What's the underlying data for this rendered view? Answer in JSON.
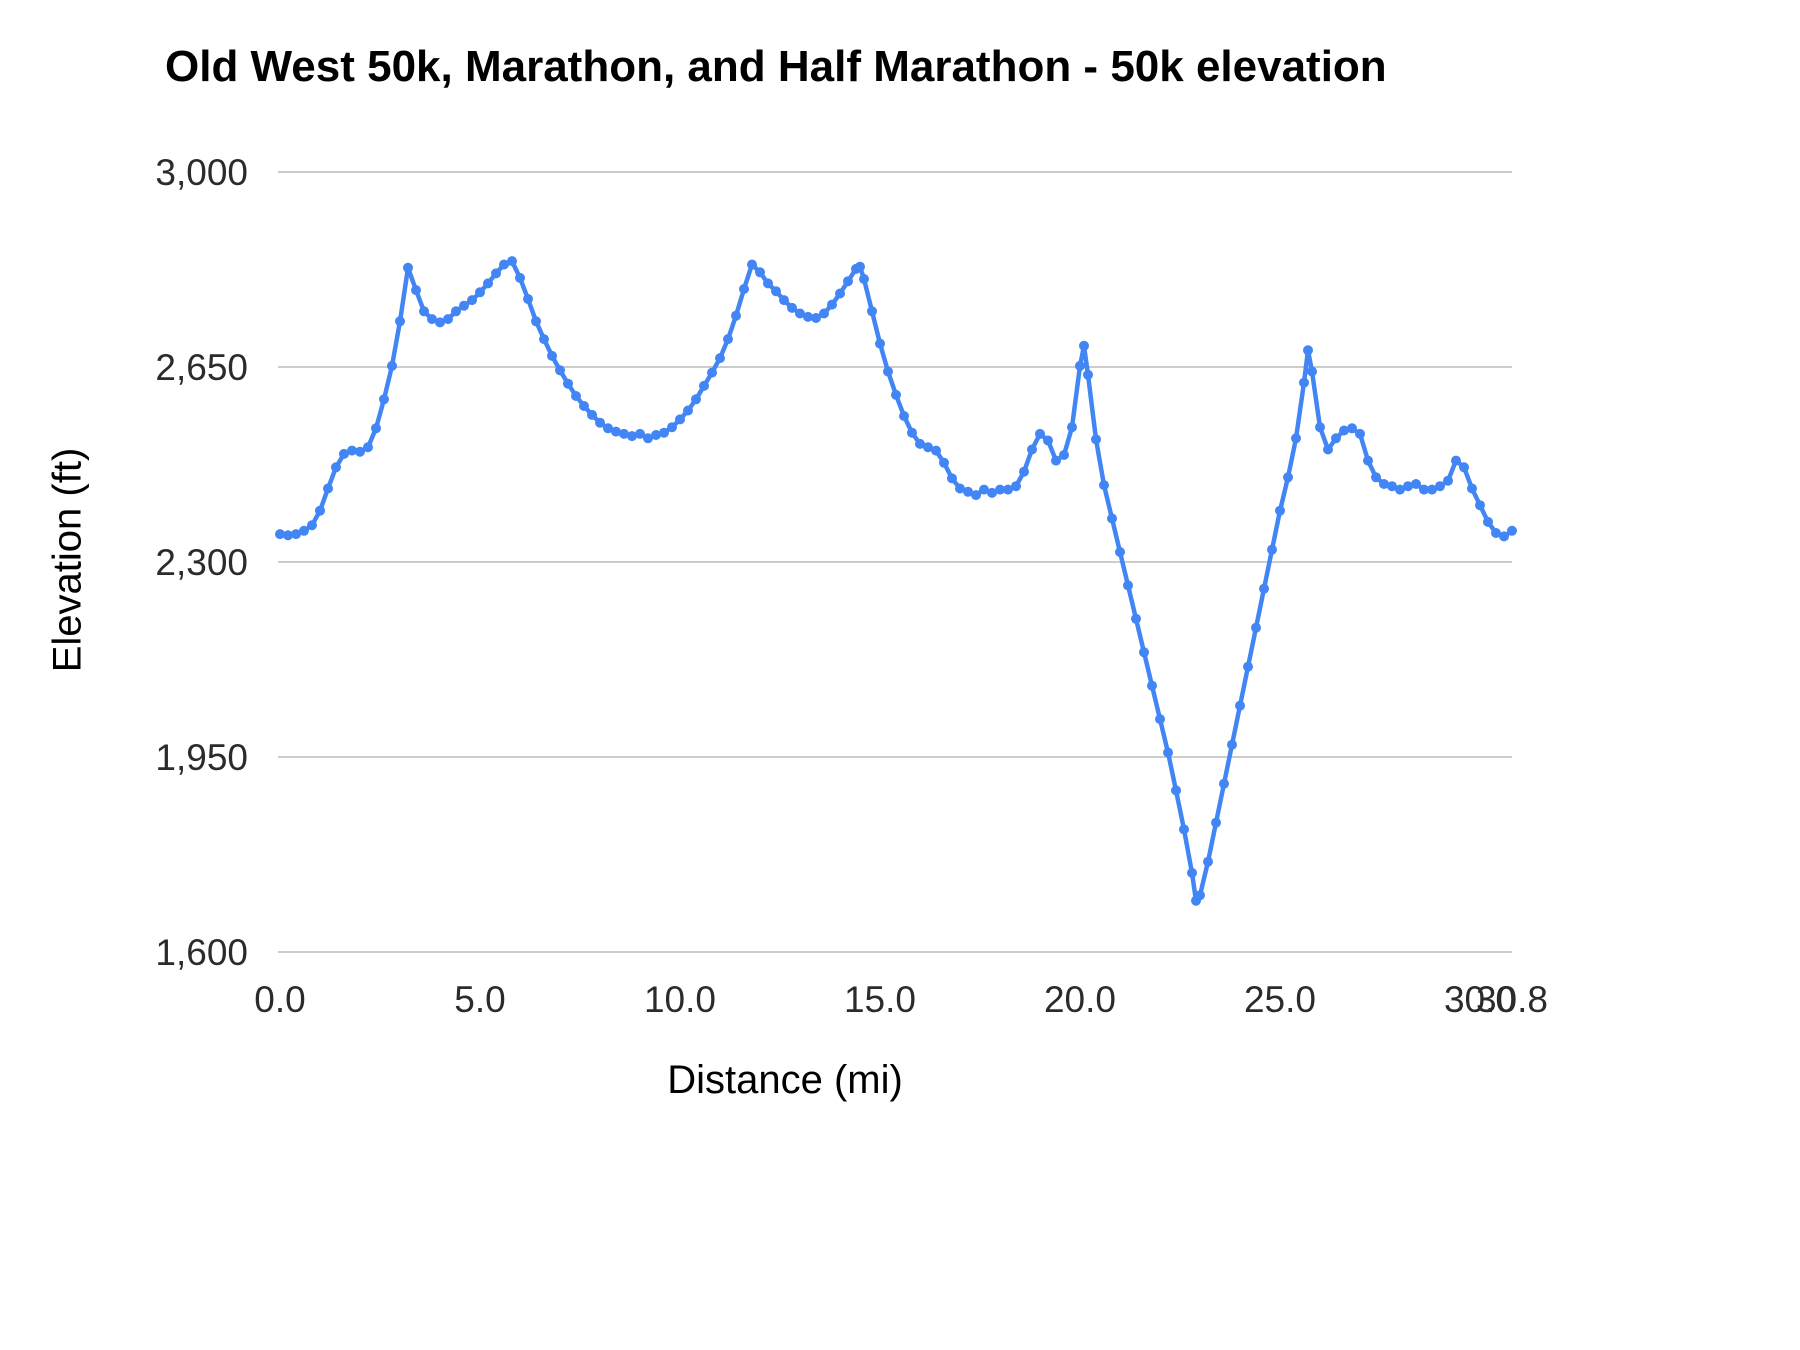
{
  "chart": {
    "title": "Old West 50k, Marathon, and Half Marathon - 50k elevation",
    "x_axis_title": "Distance (mi)",
    "y_axis_title": "Elevation (ft)"
  },
  "chart_data": {
    "type": "line",
    "title": "Old West 50k, Marathon, and Half Marathon - 50k elevation",
    "xlabel": "Distance (mi)",
    "ylabel": "Elevation (ft)",
    "xlim": [
      0,
      30.8
    ],
    "ylim": [
      1600,
      3000
    ],
    "grid": "horizontal",
    "legend": "none",
    "line_color": "#4285F4",
    "gridline_color": "#cccccc",
    "tick_color": "#2b2b2b",
    "marker": "circle",
    "x_ticks": [
      {
        "value": 0,
        "label": "0.0"
      },
      {
        "value": 5,
        "label": "5.0"
      },
      {
        "value": 10,
        "label": "10.0"
      },
      {
        "value": 15,
        "label": "15.0"
      },
      {
        "value": 20,
        "label": "20.0"
      },
      {
        "value": 25,
        "label": "25.0"
      },
      {
        "value": 30,
        "label": "30.0"
      },
      {
        "value": 30.8,
        "label": "30.8"
      }
    ],
    "y_ticks": [
      {
        "value": 1600,
        "label": "1,600"
      },
      {
        "value": 1950,
        "label": "1,950"
      },
      {
        "value": 2300,
        "label": "2,300"
      },
      {
        "value": 2650,
        "label": "2,650"
      },
      {
        "value": 3000,
        "label": "3,000"
      }
    ],
    "points": [
      [
        0.0,
        2350
      ],
      [
        0.2,
        2348
      ],
      [
        0.4,
        2350
      ],
      [
        0.6,
        2356
      ],
      [
        0.8,
        2366
      ],
      [
        1.0,
        2392
      ],
      [
        1.2,
        2432
      ],
      [
        1.4,
        2470
      ],
      [
        1.6,
        2494
      ],
      [
        1.8,
        2500
      ],
      [
        2.0,
        2498
      ],
      [
        2.2,
        2506
      ],
      [
        2.4,
        2540
      ],
      [
        2.6,
        2592
      ],
      [
        2.8,
        2652
      ],
      [
        3.0,
        2732
      ],
      [
        3.2,
        2828
      ],
      [
        3.4,
        2788
      ],
      [
        3.6,
        2750
      ],
      [
        3.8,
        2736
      ],
      [
        4.0,
        2730
      ],
      [
        4.2,
        2736
      ],
      [
        4.4,
        2750
      ],
      [
        4.6,
        2760
      ],
      [
        4.8,
        2770
      ],
      [
        5.0,
        2784
      ],
      [
        5.2,
        2800
      ],
      [
        5.4,
        2818
      ],
      [
        5.6,
        2834
      ],
      [
        5.8,
        2840
      ],
      [
        6.0,
        2810
      ],
      [
        6.2,
        2772
      ],
      [
        6.4,
        2732
      ],
      [
        6.6,
        2700
      ],
      [
        6.8,
        2670
      ],
      [
        7.0,
        2644
      ],
      [
        7.2,
        2620
      ],
      [
        7.4,
        2598
      ],
      [
        7.6,
        2580
      ],
      [
        7.8,
        2564
      ],
      [
        8.0,
        2550
      ],
      [
        8.2,
        2540
      ],
      [
        8.4,
        2534
      ],
      [
        8.6,
        2530
      ],
      [
        8.8,
        2526
      ],
      [
        9.0,
        2530
      ],
      [
        9.2,
        2522
      ],
      [
        9.4,
        2528
      ],
      [
        9.6,
        2532
      ],
      [
        9.8,
        2542
      ],
      [
        10.0,
        2556
      ],
      [
        10.2,
        2572
      ],
      [
        10.4,
        2592
      ],
      [
        10.6,
        2616
      ],
      [
        10.8,
        2640
      ],
      [
        11.0,
        2666
      ],
      [
        11.2,
        2700
      ],
      [
        11.4,
        2742
      ],
      [
        11.6,
        2790
      ],
      [
        11.8,
        2834
      ],
      [
        12.0,
        2820
      ],
      [
        12.2,
        2800
      ],
      [
        12.4,
        2786
      ],
      [
        12.6,
        2770
      ],
      [
        12.8,
        2756
      ],
      [
        13.0,
        2746
      ],
      [
        13.2,
        2740
      ],
      [
        13.4,
        2738
      ],
      [
        13.6,
        2746
      ],
      [
        13.8,
        2762
      ],
      [
        14.0,
        2782
      ],
      [
        14.2,
        2804
      ],
      [
        14.4,
        2826
      ],
      [
        14.5,
        2830
      ],
      [
        14.6,
        2808
      ],
      [
        14.8,
        2750
      ],
      [
        15.0,
        2692
      ],
      [
        15.2,
        2642
      ],
      [
        15.4,
        2600
      ],
      [
        15.6,
        2562
      ],
      [
        15.8,
        2532
      ],
      [
        16.0,
        2512
      ],
      [
        16.2,
        2506
      ],
      [
        16.4,
        2500
      ],
      [
        16.6,
        2478
      ],
      [
        16.8,
        2450
      ],
      [
        17.0,
        2432
      ],
      [
        17.2,
        2426
      ],
      [
        17.4,
        2420
      ],
      [
        17.6,
        2430
      ],
      [
        17.8,
        2424
      ],
      [
        18.0,
        2430
      ],
      [
        18.2,
        2430
      ],
      [
        18.4,
        2436
      ],
      [
        18.6,
        2462
      ],
      [
        18.8,
        2502
      ],
      [
        19.0,
        2530
      ],
      [
        19.2,
        2518
      ],
      [
        19.4,
        2482
      ],
      [
        19.6,
        2492
      ],
      [
        19.8,
        2542
      ],
      [
        20.0,
        2652
      ],
      [
        20.1,
        2688
      ],
      [
        20.2,
        2636
      ],
      [
        20.4,
        2520
      ],
      [
        20.6,
        2438
      ],
      [
        20.8,
        2378
      ],
      [
        21.0,
        2318
      ],
      [
        21.2,
        2258
      ],
      [
        21.4,
        2198
      ],
      [
        21.6,
        2138
      ],
      [
        21.8,
        2078
      ],
      [
        22.0,
        2018
      ],
      [
        22.2,
        1958
      ],
      [
        22.4,
        1890
      ],
      [
        22.6,
        1820
      ],
      [
        22.8,
        1742
      ],
      [
        22.9,
        1692
      ],
      [
        23.0,
        1702
      ],
      [
        23.2,
        1762
      ],
      [
        23.4,
        1832
      ],
      [
        23.6,
        1902
      ],
      [
        23.8,
        1972
      ],
      [
        24.0,
        2042
      ],
      [
        24.2,
        2112
      ],
      [
        24.4,
        2182
      ],
      [
        24.6,
        2252
      ],
      [
        24.8,
        2322
      ],
      [
        25.0,
        2392
      ],
      [
        25.2,
        2452
      ],
      [
        25.4,
        2522
      ],
      [
        25.6,
        2622
      ],
      [
        25.7,
        2680
      ],
      [
        25.8,
        2642
      ],
      [
        26.0,
        2542
      ],
      [
        26.2,
        2502
      ],
      [
        26.4,
        2522
      ],
      [
        26.6,
        2536
      ],
      [
        26.8,
        2540
      ],
      [
        27.0,
        2530
      ],
      [
        27.2,
        2482
      ],
      [
        27.4,
        2452
      ],
      [
        27.6,
        2440
      ],
      [
        27.8,
        2436
      ],
      [
        28.0,
        2430
      ],
      [
        28.2,
        2436
      ],
      [
        28.4,
        2440
      ],
      [
        28.6,
        2430
      ],
      [
        28.8,
        2430
      ],
      [
        29.0,
        2436
      ],
      [
        29.2,
        2446
      ],
      [
        29.4,
        2482
      ],
      [
        29.6,
        2470
      ],
      [
        29.8,
        2432
      ],
      [
        30.0,
        2402
      ],
      [
        30.2,
        2372
      ],
      [
        30.4,
        2352
      ],
      [
        30.6,
        2346
      ],
      [
        30.8,
        2356
      ]
    ]
  }
}
